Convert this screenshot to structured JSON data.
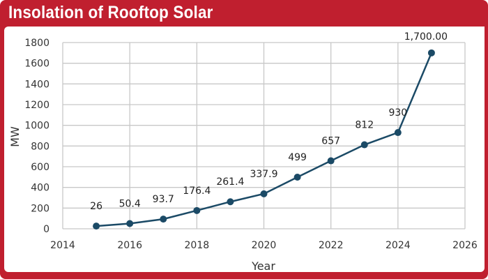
{
  "chart_data": {
    "type": "line",
    "title": "Insolation of Rooftop Solar",
    "xlabel": "Year",
    "ylabel": "MW",
    "xlim": [
      2014,
      2026
    ],
    "ylim": [
      0,
      1800
    ],
    "xticks": [
      2014,
      2016,
      2018,
      2020,
      2022,
      2024,
      2026
    ],
    "yticks": [
      0,
      200,
      400,
      600,
      800,
      1000,
      1200,
      1400,
      1600,
      1800
    ],
    "grid": true,
    "series": [
      {
        "x": [
          2015,
          2016,
          2017,
          2018,
          2019,
          2020,
          2021,
          2022,
          2023,
          2024,
          2025
        ],
        "values": [
          26,
          50.4,
          93.7,
          176.4,
          261.4,
          337.9,
          499,
          657,
          812,
          930,
          1700
        ],
        "labels": [
          "26",
          "50.4",
          "93.7",
          "176.4",
          "261.4",
          "337.9",
          "499",
          "657",
          "812",
          "930",
          "1,700.00"
        ],
        "color": "#1b4a66"
      }
    ],
    "frame_color": "#c01f2f"
  }
}
